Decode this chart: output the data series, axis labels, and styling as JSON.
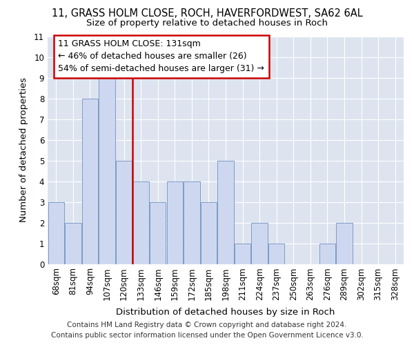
{
  "title_line1": "11, GRASS HOLM CLOSE, ROCH, HAVERFORDWEST, SA62 6AL",
  "title_line2": "Size of property relative to detached houses in Roch",
  "xlabel": "Distribution of detached houses by size in Roch",
  "ylabel": "Number of detached properties",
  "categories": [
    "68sqm",
    "81sqm",
    "94sqm",
    "107sqm",
    "120sqm",
    "133sqm",
    "146sqm",
    "159sqm",
    "172sqm",
    "185sqm",
    "198sqm",
    "211sqm",
    "224sqm",
    "237sqm",
    "250sqm",
    "263sqm",
    "276sqm",
    "289sqm",
    "302sqm",
    "315sqm",
    "328sqm"
  ],
  "values": [
    3,
    2,
    8,
    9,
    5,
    4,
    3,
    4,
    4,
    3,
    5,
    1,
    2,
    1,
    0,
    0,
    1,
    2,
    0,
    0,
    0
  ],
  "bar_color": "#cdd8f0",
  "bar_edge_color": "#7090c0",
  "red_line_x": 4.5,
  "highlight_label": "11 GRASS HOLM CLOSE: 131sqm",
  "annotation_line2": "← 46% of detached houses are smaller (26)",
  "annotation_line3": "54% of semi-detached houses are larger (31) →",
  "annotation_box_color": "#ffffff",
  "annotation_box_edge": "#cc0000",
  "red_line_color": "#cc0000",
  "ylim": [
    0,
    11
  ],
  "yticks": [
    0,
    1,
    2,
    3,
    4,
    5,
    6,
    7,
    8,
    9,
    10,
    11
  ],
  "footer_line1": "Contains HM Land Registry data © Crown copyright and database right 2024.",
  "footer_line2": "Contains public sector information licensed under the Open Government Licence v3.0.",
  "fig_bg_color": "#ffffff",
  "ax_bg_color": "#dde4f0",
  "grid_color": "#ffffff",
  "title1_fontsize": 10.5,
  "title2_fontsize": 9.5,
  "axis_label_fontsize": 9.5,
  "tick_fontsize": 8.5,
  "footer_fontsize": 7.5,
  "annotation_fontsize": 9
}
